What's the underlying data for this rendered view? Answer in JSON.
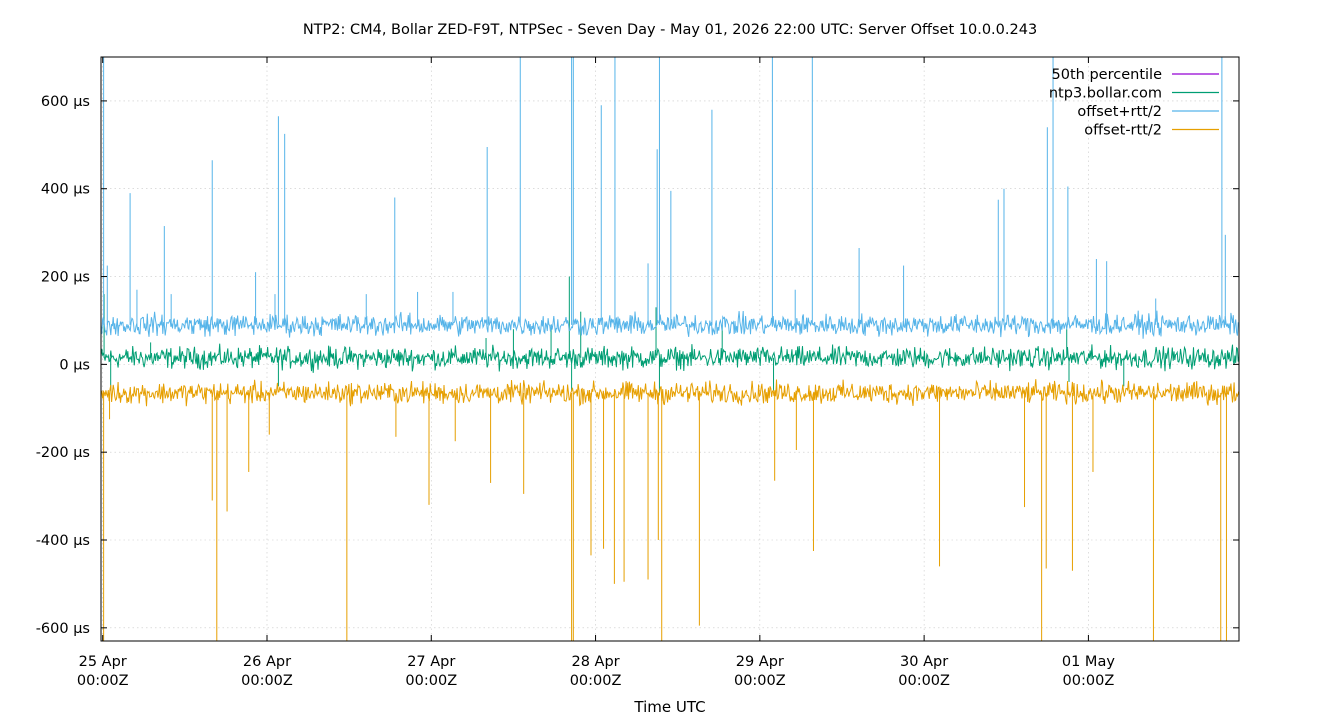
{
  "chart_data": {
    "type": "line",
    "title": "NTP2: CM4, Bollar ZED-F9T, NTPSec - Seven Day - May 01, 2026 22:00 UTC: Server Offset 10.0.0.243",
    "xlabel": "Time UTC",
    "ylabel": "",
    "ylim": [
      -630,
      700
    ],
    "y_unit": "µs",
    "grid": true,
    "legend_position": "top-right",
    "xlim": [
      "2026-04-24T23:45Z",
      "2026-05-01T22:00Z"
    ],
    "y_ticks": [
      {
        "value": 600,
        "label": "600 µs"
      },
      {
        "value": 400,
        "label": "400 µs"
      },
      {
        "value": 200,
        "label": "200 µs"
      },
      {
        "value": 0,
        "label": "0 µs"
      },
      {
        "value": -200,
        "label": "-200 µs"
      },
      {
        "value": -400,
        "label": "-400 µs"
      },
      {
        "value": -600,
        "label": "-600 µs"
      }
    ],
    "x_ticks": [
      {
        "value": "2026-04-25T00:00Z",
        "line1": "25 Apr",
        "line2": "00:00Z"
      },
      {
        "value": "2026-04-26T00:00Z",
        "line1": "26 Apr",
        "line2": "00:00Z"
      },
      {
        "value": "2026-04-27T00:00Z",
        "line1": "27 Apr",
        "line2": "00:00Z"
      },
      {
        "value": "2026-04-28T00:00Z",
        "line1": "28 Apr",
        "line2": "00:00Z"
      },
      {
        "value": "2026-04-29T00:00Z",
        "line1": "29 Apr",
        "line2": "00:00Z"
      },
      {
        "value": "2026-04-30T00:00Z",
        "line1": "30 Apr",
        "line2": "00:00Z"
      },
      {
        "value": "2026-05-01T00:00Z",
        "line1": "01 May",
        "line2": "00:00Z"
      }
    ],
    "series": [
      {
        "name": "50th percentile",
        "color": "#9400d3",
        "baseline": null,
        "noise": 0,
        "spikes": []
      },
      {
        "name": "ntp3.bollar.com",
        "color": "#009e73",
        "baseline": 15,
        "noise": 12,
        "spikes": [
          [
            "2026-04-25T00:12Z",
            160
          ],
          [
            "2026-04-25T01:10Z",
            -60
          ],
          [
            "2026-04-25T07:00Z",
            50
          ],
          [
            "2026-04-26T01:40Z",
            -50
          ],
          [
            "2026-04-27T08:00Z",
            60
          ],
          [
            "2026-04-27T12:00Z",
            80
          ],
          [
            "2026-04-27T17:30Z",
            90
          ],
          [
            "2026-04-27T20:10Z",
            200
          ],
          [
            "2026-04-27T20:30Z",
            -60
          ],
          [
            "2026-04-27T21:50Z",
            120
          ],
          [
            "2026-04-28T08:50Z",
            130
          ],
          [
            "2026-04-28T09:20Z",
            -70
          ],
          [
            "2026-04-28T18:30Z",
            90
          ],
          [
            "2026-04-29T02:00Z",
            -60
          ],
          [
            "2026-04-30T20:50Z",
            80
          ],
          [
            "2026-04-30T21:10Z",
            -40
          ],
          [
            "2026-05-01T05:10Z",
            -50
          ]
        ]
      },
      {
        "name": "offset+rtt/2",
        "color": "#56b4e9",
        "baseline": 90,
        "noise": 12,
        "spikes": [
          [
            "2026-04-25T00:08Z",
            700
          ],
          [
            "2026-04-25T00:40Z",
            225
          ],
          [
            "2026-04-25T04:00Z",
            390
          ],
          [
            "2026-04-25T05:00Z",
            170
          ],
          [
            "2026-04-25T09:00Z",
            315
          ],
          [
            "2026-04-25T10:00Z",
            160
          ],
          [
            "2026-04-25T16:00Z",
            465
          ],
          [
            "2026-04-25T22:20Z",
            210
          ],
          [
            "2026-04-26T01:10Z",
            160
          ],
          [
            "2026-04-26T01:40Z",
            565
          ],
          [
            "2026-04-26T02:35Z",
            525
          ],
          [
            "2026-04-26T14:30Z",
            160
          ],
          [
            "2026-04-26T18:40Z",
            380
          ],
          [
            "2026-04-26T22:00Z",
            165
          ],
          [
            "2026-04-27T03:10Z",
            165
          ],
          [
            "2026-04-27T08:10Z",
            495
          ],
          [
            "2026-04-27T13:00Z",
            700
          ],
          [
            "2026-04-27T20:30Z",
            700
          ],
          [
            "2026-04-27T20:45Z",
            700
          ],
          [
            "2026-04-28T00:50Z",
            590
          ],
          [
            "2026-04-28T02:50Z",
            700
          ],
          [
            "2026-04-28T07:40Z",
            230
          ],
          [
            "2026-04-28T09:00Z",
            490
          ],
          [
            "2026-04-28T09:20Z",
            700
          ],
          [
            "2026-04-28T11:00Z",
            395
          ],
          [
            "2026-04-28T17:00Z",
            580
          ],
          [
            "2026-04-29T01:50Z",
            700
          ],
          [
            "2026-04-29T05:10Z",
            170
          ],
          [
            "2026-04-29T07:40Z",
            700
          ],
          [
            "2026-04-29T14:30Z",
            265
          ],
          [
            "2026-04-29T21:00Z",
            225
          ],
          [
            "2026-04-30T10:50Z",
            375
          ],
          [
            "2026-04-30T11:40Z",
            400
          ],
          [
            "2026-04-30T18:00Z",
            540
          ],
          [
            "2026-04-30T18:50Z",
            700
          ],
          [
            "2026-04-30T21:00Z",
            405
          ],
          [
            "2026-05-01T01:10Z",
            240
          ],
          [
            "2026-05-01T02:40Z",
            235
          ],
          [
            "2026-05-01T09:50Z",
            150
          ],
          [
            "2026-05-01T19:30Z",
            700
          ],
          [
            "2026-05-01T20:00Z",
            295
          ]
        ]
      },
      {
        "name": "offset-rtt/2",
        "color": "#e69f00",
        "baseline": -65,
        "noise": 12,
        "spikes": [
          [
            "2026-04-25T00:08Z",
            -630
          ],
          [
            "2026-04-25T01:00Z",
            -125
          ],
          [
            "2026-04-25T16:00Z",
            -310
          ],
          [
            "2026-04-25T16:40Z",
            -630
          ],
          [
            "2026-04-25T18:10Z",
            -335
          ],
          [
            "2026-04-25T21:20Z",
            -245
          ],
          [
            "2026-04-26T00:20Z",
            -160
          ],
          [
            "2026-04-26T11:40Z",
            -630
          ],
          [
            "2026-04-26T18:50Z",
            -165
          ],
          [
            "2026-04-26T23:40Z",
            -320
          ],
          [
            "2026-04-27T03:30Z",
            -175
          ],
          [
            "2026-04-27T08:40Z",
            -270
          ],
          [
            "2026-04-27T13:30Z",
            -295
          ],
          [
            "2026-04-27T20:30Z",
            -630
          ],
          [
            "2026-04-27T20:45Z",
            -630
          ],
          [
            "2026-04-27T23:20Z",
            -435
          ],
          [
            "2026-04-28T01:10Z",
            -420
          ],
          [
            "2026-04-28T02:45Z",
            -500
          ],
          [
            "2026-04-28T04:10Z",
            -495
          ],
          [
            "2026-04-28T07:40Z",
            -490
          ],
          [
            "2026-04-28T09:10Z",
            -400
          ],
          [
            "2026-04-28T09:40Z",
            -630
          ],
          [
            "2026-04-28T15:10Z",
            -595
          ],
          [
            "2026-04-29T02:10Z",
            -265
          ],
          [
            "2026-04-29T05:20Z",
            -195
          ],
          [
            "2026-04-29T07:50Z",
            -425
          ],
          [
            "2026-04-30T02:15Z",
            -460
          ],
          [
            "2026-04-30T14:40Z",
            -325
          ],
          [
            "2026-04-30T17:10Z",
            -630
          ],
          [
            "2026-04-30T17:50Z",
            -465
          ],
          [
            "2026-04-30T21:40Z",
            -470
          ],
          [
            "2026-05-01T00:40Z",
            -245
          ],
          [
            "2026-05-01T09:30Z",
            -630
          ],
          [
            "2026-05-01T19:20Z",
            -630
          ],
          [
            "2026-05-01T20:10Z",
            -630
          ]
        ]
      }
    ]
  }
}
